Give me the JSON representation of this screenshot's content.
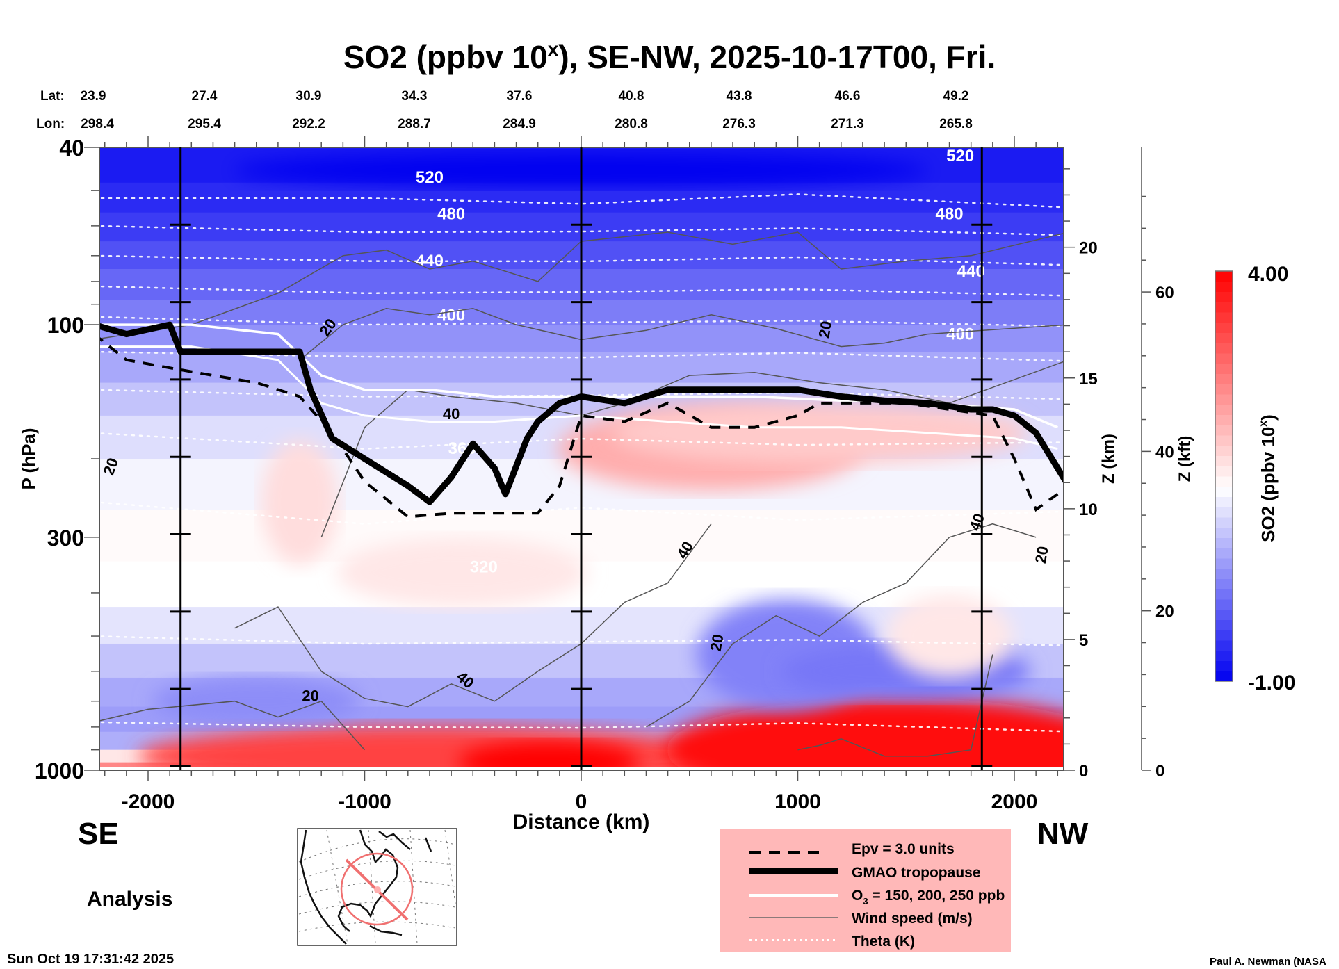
{
  "chart_data": {
    "type": "heatmap",
    "title": "SO2 (ppbv 10ˣ), SE-NW, 2025-10-17T00, Fri.",
    "title_parts": {
      "pre": "SO2 (ppbv 10",
      "sup": "x",
      "post": "), SE-NW, 2025-10-17T00, Fri."
    },
    "xlabel": "Distance (km)",
    "ylabel": "P (hPa)",
    "xlim": [
      -2250,
      2250
    ],
    "ylim": [
      1000,
      40
    ],
    "yscale": "log",
    "x_ticks": [
      -2000,
      -1000,
      0,
      1000,
      2000
    ],
    "x_tick_labels": [
      "-2000",
      "-1000",
      "0",
      "1000",
      "2000"
    ],
    "y_ticks": [
      40,
      100,
      300,
      1000
    ],
    "y_tick_labels": [
      "40",
      "100",
      "300",
      "1000"
    ],
    "lat_lon_header": {
      "lat_label": "Lat:",
      "lon_label": "Lon:",
      "lat": [
        "23.9",
        "27.4",
        "30.9",
        "34.3",
        "37.6",
        "40.8",
        "43.8",
        "46.6",
        "49.2"
      ],
      "lon": [
        "298.4",
        "295.4",
        "292.2",
        "288.7",
        "284.9",
        "280.8",
        "276.3",
        "271.3",
        "265.8"
      ]
    },
    "right_axes": [
      {
        "label": "Z (km)",
        "ticks": [
          0,
          5,
          10,
          15,
          20
        ],
        "tick_pressures": [
          1000,
          540,
          265,
          120,
          55
        ]
      },
      {
        "label": "Z (kft)",
        "ticks": [
          0,
          20,
          40,
          60
        ],
        "tick_pressures": [
          1000,
          460,
          185,
          73
        ]
      }
    ],
    "vertical_markers_km": [
      -1850,
      0,
      1850
    ],
    "endpoints": {
      "left": "SE",
      "right": "NW"
    },
    "colorbar": {
      "label_pre": "SO2 (ppbv 10",
      "label_sup": "x",
      "label_post": ")",
      "min": -1.0,
      "max": 4.0,
      "min_label": "-1.00",
      "max_label": "4.00",
      "levels": 40,
      "colors": {
        "low": "#0000f0",
        "mid": "#ffffff",
        "high": "#ff0000"
      },
      "mid_value": 1.4
    },
    "field_description": [
      {
        "region": "stratosphere top (40-70 hPa)",
        "value": -0.7
      },
      {
        "region": "lower stratosphere (70-120 hPa)",
        "value": 0.2
      },
      {
        "region": "upper troposphere x 350..1500 km, 150-230 hPa",
        "value": 2.0
      },
      {
        "region": "mid troposphere 250-500 hPa",
        "value": 1.4
      },
      {
        "region": "lower troposphere 500-800 hPa",
        "value": 0.5
      },
      {
        "region": "boundary layer x -1300..0 km, 850-1000 hPa",
        "value": 3.3
      },
      {
        "region": "boundary layer x 1000..2100 km, 750-1000 hPa",
        "value": 3.8
      }
    ],
    "theta_contours_K": [
      320,
      360,
      400,
      440,
      480,
      520
    ],
    "theta_labels": [
      "520",
      "480",
      "440",
      "400",
      "360",
      "320"
    ],
    "wind_contour_labels": [
      "20",
      "20",
      "20",
      "20",
      "40",
      "40",
      "40",
      "40",
      "20",
      "20",
      "20"
    ],
    "tropopause_pressures": {
      "x": [
        -2250,
        -2100,
        -1900,
        -1850,
        -1600,
        -1300,
        -1250,
        -1150,
        -1000,
        -800,
        -700,
        -600,
        -500,
        -400,
        -350,
        -250,
        -200,
        -100,
        0,
        200,
        400,
        600,
        800,
        1000,
        1200,
        1400,
        1600,
        1800,
        1900,
        2000,
        2100,
        2250
      ],
      "p": [
        100,
        105,
        100,
        115,
        115,
        115,
        140,
        180,
        200,
        230,
        250,
        220,
        185,
        210,
        240,
        180,
        165,
        150,
        145,
        150,
        140,
        140,
        140,
        140,
        145,
        148,
        150,
        155,
        155,
        160,
        175,
        230
      ]
    },
    "epv_pressures": {
      "x": [
        -2250,
        -2100,
        -1900,
        -1700,
        -1500,
        -1300,
        -1150,
        -1000,
        -800,
        -600,
        -400,
        -200,
        -100,
        0,
        200,
        400,
        600,
        800,
        1000,
        1100,
        1300,
        1500,
        1700,
        1900,
        2000,
        2100,
        2200
      ],
      "p": [
        105,
        120,
        125,
        130,
        135,
        145,
        175,
        225,
        270,
        265,
        265,
        265,
        230,
        160,
        165,
        150,
        170,
        170,
        160,
        150,
        150,
        150,
        155,
        160,
        200,
        260,
        240
      ]
    },
    "o3_pressures": {
      "x": [
        -2250,
        -1800,
        -1400,
        -1200,
        -1000,
        -700,
        -400,
        0,
        400,
        800,
        1200,
        1600,
        2000,
        2200
      ],
      "p150": [
        100,
        100,
        105,
        130,
        140,
        140,
        145,
        145,
        145,
        145,
        148,
        150,
        155,
        170
      ],
      "p200": [
        112,
        112,
        120,
        150,
        160,
        165,
        165,
        160,
        165,
        170,
        170,
        175,
        180,
        190
      ]
    },
    "legend": [
      {
        "label": "Epv = 3.0 units",
        "style": "dashed-thick-black"
      },
      {
        "label": "GMAO tropopause",
        "style": "solid-very-thick-black"
      },
      {
        "label_pre": "O",
        "label_sub": "3",
        "label_post": " = 150, 200, 250 ppb",
        "style": "solid-white"
      },
      {
        "label": "Wind speed (m/s)",
        "style": "thin-gray"
      },
      {
        "label": "Theta (K)",
        "style": "dotted-white"
      }
    ],
    "legend_bg": "#ffb8b8"
  },
  "labels": {
    "analysis": "Analysis",
    "timestamp": "Sun Oct 19 17:31:42 2025",
    "credit": "Paul A. Newman (NASA"
  },
  "inset_map": {
    "description": "North America orthographic map with cross-section path",
    "path_color": "#f07070"
  }
}
